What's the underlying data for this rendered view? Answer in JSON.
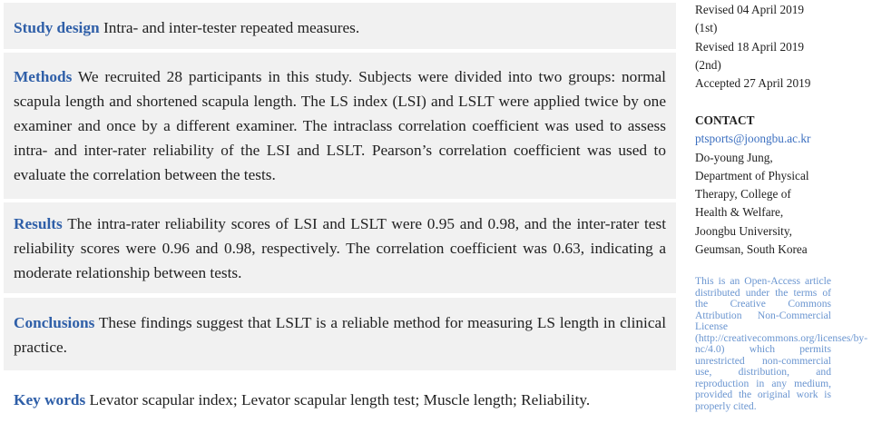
{
  "abstract": {
    "study_design": {
      "label": "Study design",
      "text": "Intra- and inter-tester repeated measures."
    },
    "methods": {
      "label": "Methods",
      "text": "We recruited 28 participants in this study. Subjects were divided into two groups: normal scapula length and shortened scapula length. The LS index (LSI) and LSLT were applied twice by one examiner and once by a different examiner. The intraclass correlation coefficient was used to assess intra- and inter-rater reliability of the LSI and LSLT. Pearson’s correlation coefficient was used to evaluate the correlation between the tests."
    },
    "results": {
      "label": "Results",
      "text": "The intra-rater reliability scores of LSI and LSLT were 0.95 and 0.98, and the inter-rater test reliability scores were 0.96 and 0.98, respectively. The correlation coefficient was 0.63, indicating a moderate relationship between tests."
    },
    "conclusions": {
      "label": "Conclusions",
      "text": "These findings suggest that LSLT is a reliable method for measuring LS length in clinical practice."
    },
    "keywords": {
      "label": "Key words",
      "text": "Levator scapular index; Levator scapular length test; Muscle length; Reliability."
    }
  },
  "sidebar": {
    "dates": [
      "Revised 04 April 2019",
      "(1st)",
      "Revised 18 April 2019",
      "(2nd)",
      "Accepted 27 April 2019"
    ],
    "contact_heading": "CONTACT",
    "email": "ptsports@joongbu.ac.kr",
    "address": [
      "Do-young Jung,",
      "Department of Physical",
      "Therapy, College of",
      "Health & Welfare,",
      "Joongbu University,",
      "Geumsan, South Korea"
    ],
    "license": "This is an Open-Access article distributed under the terms of the Creative Commons Attribution Non-Commercial License (http://creativecommons.org/licenses/by-nc/4.0) which permits unrestricted non-commercial use, distribution, and reproduction in any medium, provided the original work is properly cited."
  },
  "colors": {
    "label": "#2f5fa8",
    "box_bg": "#f1f1f1",
    "license": "#6a95d0"
  }
}
